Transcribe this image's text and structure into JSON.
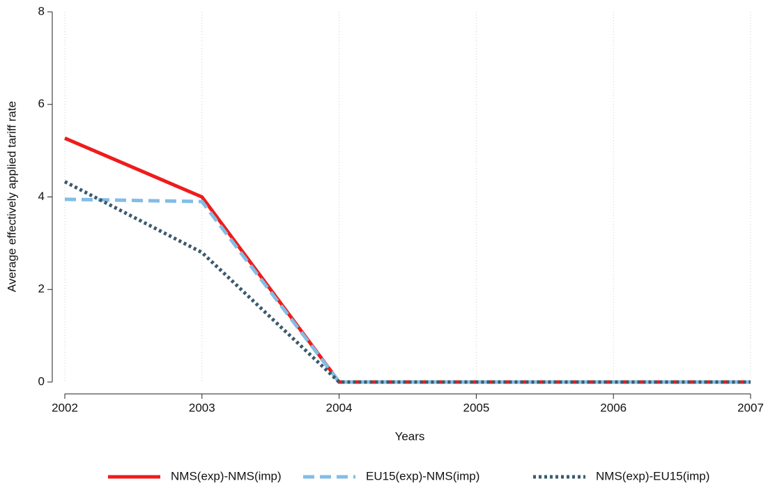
{
  "chart_data": {
    "type": "line",
    "x": [
      2002,
      2003,
      2004,
      2005,
      2006,
      2007
    ],
    "series": [
      {
        "name": "NMS(exp)-NMS(imp)",
        "color": "#ee1c1c",
        "dash": "solid",
        "values": [
          5.27,
          4.0,
          0,
          0,
          0,
          0
        ]
      },
      {
        "name": "EU15(exp)-NMS(imp)",
        "color": "#82bde6",
        "dash": "dashed",
        "values": [
          3.95,
          3.9,
          0,
          0,
          0,
          0
        ]
      },
      {
        "name": "NMS(exp)-EU15(imp)",
        "color": "#3b5a6d",
        "dash": "dotted",
        "values": [
          4.33,
          2.8,
          0,
          0,
          0,
          0
        ]
      }
    ],
    "xlabel": "Years",
    "ylabel": "Average effectively applied tariff rate",
    "xlim": [
      2002,
      2007
    ],
    "xticks": [
      2002,
      2003,
      2004,
      2005,
      2006,
      2007
    ],
    "ylim": [
      0,
      8
    ],
    "yticks": [
      0,
      2,
      4,
      6,
      8
    ],
    "grid": "x",
    "legend": "bottom"
  }
}
